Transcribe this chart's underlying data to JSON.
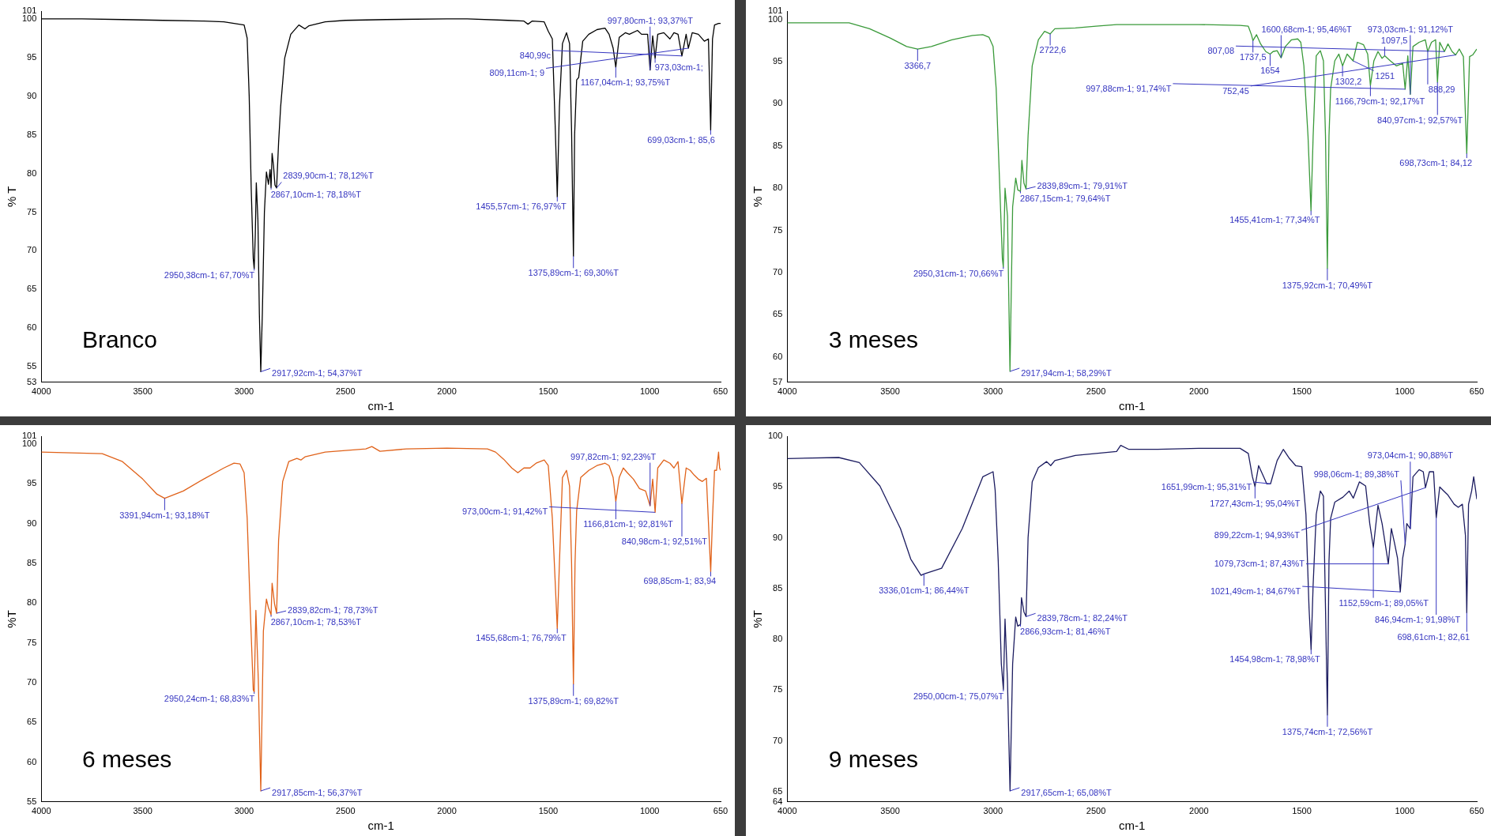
{
  "chart_data": [
    {
      "type": "line",
      "title": "Branco",
      "xlabel": "cm-1",
      "ylabel": "% T",
      "color": "#000000",
      "xlim": [
        4000,
        650
      ],
      "xticks": [
        4000,
        3500,
        3000,
        2500,
        2000,
        1500,
        1000,
        650
      ],
      "ylim": [
        53,
        101
      ],
      "yticks": [
        53,
        55,
        60,
        65,
        70,
        75,
        80,
        85,
        90,
        95,
        100,
        101
      ],
      "x": [
        4000,
        3800,
        3600,
        3400,
        3200,
        3100,
        3050,
        3000,
        2985,
        2975,
        2965,
        2955,
        2950.38,
        2945,
        2940,
        2932,
        2925,
        2917.92,
        2910,
        2900,
        2890,
        2880,
        2872,
        2867.1,
        2862,
        2855,
        2848,
        2839.9,
        2830,
        2820,
        2800,
        2770,
        2730,
        2700,
        2680,
        2600,
        2500,
        2300,
        2000,
        1900,
        1700,
        1620,
        1600,
        1580,
        1520,
        1500,
        1480,
        1465,
        1455.57,
        1445,
        1430,
        1410,
        1395,
        1385,
        1375.89,
        1370,
        1360,
        1350,
        1330,
        1300,
        1260,
        1220,
        1200,
        1180,
        1167.04,
        1150,
        1120,
        1100,
        1060,
        1040,
        1010,
        997.8,
        985,
        973.03,
        960,
        930,
        900,
        880,
        860,
        840.99,
        820,
        809.11,
        790,
        760,
        730,
        710,
        699.03,
        690,
        680,
        660,
        650
      ],
      "values": [
        100,
        100,
        99.9,
        99.8,
        99.7,
        99.6,
        99.4,
        99.2,
        97.5,
        90,
        78,
        69,
        67.7,
        72,
        78.8,
        74,
        62,
        54.37,
        62,
        75,
        80.2,
        78.6,
        80.5,
        78.18,
        82.6,
        81,
        78.5,
        78.12,
        84,
        88.6,
        94.9,
        98,
        99.2,
        98.7,
        99.1,
        99.6,
        99.8,
        99.9,
        100,
        100,
        99.8,
        99.7,
        99.3,
        99.7,
        99.6,
        98.4,
        97.4,
        85.5,
        76.97,
        88.6,
        96.8,
        98.2,
        96.8,
        85.5,
        69.3,
        85,
        92.1,
        92.4,
        97.1,
        98,
        98.6,
        98.8,
        98,
        96.2,
        93.75,
        97.6,
        98.2,
        98,
        98.5,
        98,
        98,
        93.37,
        97.8,
        94.9,
        98,
        98.2,
        97.4,
        98.2,
        98,
        95.2,
        98,
        96.2,
        98.2,
        98,
        97.1,
        97.4,
        85.6,
        97.4,
        99.2,
        99.4,
        99.4
      ],
      "annotations": [
        {
          "text": "2917,92cm-1; 54,37%T",
          "x": 2917.92,
          "y": 54.37
        },
        {
          "text": "2950,38cm-1; 67,70%T",
          "x": 2950.38,
          "y": 67.7
        },
        {
          "text": "2867,10cm-1; 78,18%T",
          "x": 2867.1,
          "y": 78.18
        },
        {
          "text": "2839,90cm-1; 78,12%T",
          "x": 2839.9,
          "y": 78.12
        },
        {
          "text": "1455,57cm-1; 76,97%T",
          "x": 1455.57,
          "y": 76.97
        },
        {
          "text": "1375,89cm-1; 69,30%T",
          "x": 1375.89,
          "y": 69.3
        },
        {
          "text": "1167,04cm-1; 93,75%T",
          "x": 1167.04,
          "y": 93.75
        },
        {
          "text": "997,80cm-1; 93,37%T",
          "x": 997.8,
          "y": 93.37
        },
        {
          "text": "973,03cm-1;",
          "x": 973.03,
          "y": 94.9
        },
        {
          "text": "840,99c",
          "x": 840.99,
          "y": 95.2
        },
        {
          "text": "809,11cm-1; 9",
          "x": 809.11,
          "y": 96.2
        },
        {
          "text": "699,03cm-1; 85,6",
          "x": 699.03,
          "y": 85.6
        }
      ]
    },
    {
      "type": "line",
      "title": "3 meses",
      "xlabel": "cm-1",
      "ylabel": "% T",
      "color": "#3a9a3a",
      "xlim": [
        4000,
        650
      ],
      "xticks": [
        4000,
        3500,
        3000,
        2500,
        2000,
        1500,
        1000,
        650
      ],
      "ylim": [
        57,
        101
      ],
      "yticks": [
        57,
        60,
        65,
        70,
        75,
        80,
        85,
        90,
        95,
        100,
        101
      ],
      "x": [
        4000,
        3800,
        3700,
        3600,
        3500,
        3420,
        3366.7,
        3300,
        3200,
        3100,
        3050,
        3020,
        3000,
        2985,
        2970,
        2955,
        2950.31,
        2942,
        2930,
        2917.94,
        2905,
        2890,
        2880,
        2867.15,
        2860,
        2850,
        2839.89,
        2830,
        2810,
        2780,
        2750,
        2722.6,
        2700,
        2600,
        2500,
        2400,
        2200,
        2000,
        1800,
        1760,
        1745,
        1737.5,
        1720,
        1700,
        1675,
        1654,
        1640,
        1620,
        1600.68,
        1580,
        1550,
        1520,
        1505,
        1490,
        1470,
        1455.41,
        1445,
        1430,
        1410,
        1395,
        1385,
        1375.92,
        1368,
        1360,
        1340,
        1320,
        1302.2,
        1280,
        1251,
        1230,
        1200,
        1180,
        1166.79,
        1150,
        1130,
        1110,
        1097.5,
        1070,
        1040,
        1010,
        997.88,
        985,
        973.03,
        960,
        930,
        900,
        888.29,
        870,
        850,
        840.97,
        830,
        807.08,
        790,
        770,
        752.45,
        735,
        715,
        698.73,
        685,
        670,
        650
      ],
      "values": [
        99.6,
        99.6,
        99.6,
        98.9,
        97.8,
        96.8,
        96.5,
        96.8,
        97.6,
        98.1,
        98.2,
        97.9,
        96.8,
        91.8,
        81.8,
        71.7,
        70.66,
        80,
        76.7,
        58.29,
        77.8,
        81.2,
        79.8,
        79.64,
        83.3,
        80.6,
        79.91,
        86.2,
        94.5,
        97.6,
        98.6,
        98.3,
        98.9,
        99,
        99.2,
        99.4,
        99.4,
        99.4,
        99.3,
        99.2,
        98.2,
        97.5,
        98.2,
        97.1,
        96.2,
        95.9,
        96.2,
        96.3,
        95.46,
        96.8,
        97.6,
        97.7,
        97.3,
        94.5,
        86.2,
        77.34,
        86.2,
        95.7,
        96.3,
        95.1,
        86.2,
        70.49,
        86.2,
        91.8,
        95.1,
        95.9,
        94.5,
        95.9,
        95.1,
        97.3,
        97,
        95.9,
        92.17,
        95.1,
        96.2,
        95.4,
        95.7,
        95.1,
        94.5,
        94.8,
        91.74,
        95.7,
        91.12,
        96.8,
        97.3,
        97.6,
        96.2,
        97.3,
        97.6,
        92.57,
        97.3,
        96.2,
        97.1,
        96.2,
        95.8,
        96.5,
        95.6,
        84.12,
        95.6,
        95.8,
        96.5
      ],
      "annotations": [
        {
          "text": "2917,94cm-1; 58,29%T",
          "x": 2917.94,
          "y": 58.29
        },
        {
          "text": "2950,31cm-1; 70,66%T",
          "x": 2950.31,
          "y": 70.66
        },
        {
          "text": "2867,15cm-1; 79,64%T",
          "x": 2867.15,
          "y": 79.64
        },
        {
          "text": "2839,89cm-1; 79,91%T",
          "x": 2839.89,
          "y": 79.91
        },
        {
          "text": "1455,41cm-1; 77,34%T",
          "x": 1455.41,
          "y": 77.34
        },
        {
          "text": "1375,92cm-1; 70,49%T",
          "x": 1375.92,
          "y": 70.49
        },
        {
          "text": "3366,7",
          "x": 3366.7,
          "y": 96.5
        },
        {
          "text": "2722,6",
          "x": 2722.6,
          "y": 98.3
        },
        {
          "text": "1737,5",
          "x": 1737.5,
          "y": 97.5
        },
        {
          "text": "1654",
          "x": 1654,
          "y": 95.9
        },
        {
          "text": "1600,68cm-1; 95,46%T",
          "x": 1600.68,
          "y": 95.46
        },
        {
          "text": "1302,2",
          "x": 1302.2,
          "y": 94.5
        },
        {
          "text": "1251",
          "x": 1251,
          "y": 95.1
        },
        {
          "text": "1166,79cm-1; 92,17%T",
          "x": 1166.79,
          "y": 92.17
        },
        {
          "text": "1097,5",
          "x": 1097.5,
          "y": 95.7
        },
        {
          "text": "997,88cm-1; 91,74%T",
          "x": 997.88,
          "y": 91.74
        },
        {
          "text": "973,03cm-1; 91,12%T",
          "x": 973.03,
          "y": 91.12
        },
        {
          "text": "888,29",
          "x": 888.29,
          "y": 96.2
        },
        {
          "text": "840,97cm-1; 92,57%T",
          "x": 840.97,
          "y": 92.57
        },
        {
          "text": "807,08",
          "x": 807.08,
          "y": 96.2
        },
        {
          "text": "752,45",
          "x": 752.45,
          "y": 95.8
        },
        {
          "text": "698,73cm-1; 84,12",
          "x": 698.73,
          "y": 84.12
        }
      ]
    },
    {
      "type": "line",
      "title": "6 meses",
      "xlabel": "cm-1",
      "ylabel": "%T",
      "color": "#e0621a",
      "xlim": [
        4000,
        650
      ],
      "xticks": [
        4000,
        3500,
        3000,
        2500,
        2000,
        1500,
        1000,
        650
      ],
      "ylim": [
        55,
        101
      ],
      "yticks": [
        55,
        60,
        65,
        70,
        75,
        80,
        85,
        90,
        95,
        100,
        101
      ],
      "x": [
        4000,
        3700,
        3600,
        3500,
        3430,
        3391.94,
        3300,
        3200,
        3100,
        3050,
        3020,
        3000,
        2985,
        2970,
        2955,
        2950.24,
        2942,
        2930,
        2917.85,
        2905,
        2890,
        2880,
        2867.1,
        2862,
        2850,
        2839.82,
        2830,
        2810,
        2780,
        2740,
        2720,
        2700,
        2600,
        2400,
        2370,
        2330,
        2200,
        2000,
        1800,
        1760,
        1720,
        1680,
        1650,
        1620,
        1590,
        1560,
        1520,
        1500,
        1480,
        1465,
        1455.68,
        1445,
        1430,
        1410,
        1395,
        1385,
        1375.89,
        1368,
        1360,
        1340,
        1300,
        1260,
        1220,
        1200,
        1180,
        1166.81,
        1150,
        1130,
        1110,
        1080,
        1050,
        1020,
        997.82,
        985,
        973,
        960,
        930,
        900,
        880,
        860,
        840.98,
        820,
        800,
        780,
        760,
        740,
        720,
        698.85,
        690,
        680,
        670,
        660,
        655,
        650
      ],
      "values": [
        99,
        98.8,
        97.8,
        95.6,
        93.7,
        93.18,
        94.1,
        95.6,
        97,
        97.6,
        97.5,
        96.4,
        90.7,
        79.4,
        69.1,
        68.83,
        79.1,
        70.3,
        56.37,
        76.5,
        80.5,
        79.4,
        78.53,
        82.5,
        79.9,
        78.73,
        87.9,
        95.3,
        97.8,
        98.2,
        98,
        98.4,
        99,
        99.4,
        99.7,
        99.1,
        99.4,
        99.5,
        99.4,
        99,
        98.1,
        97,
        96.4,
        97,
        97,
        97.6,
        98,
        97.3,
        90.7,
        82.2,
        76.79,
        85,
        95.8,
        96.7,
        94.7,
        85,
        69.82,
        85,
        91.6,
        95.8,
        96.7,
        97.3,
        97.6,
        97.3,
        95.8,
        92.81,
        95.8,
        97,
        96.4,
        95.6,
        94.4,
        94.1,
        92.23,
        95.6,
        91.42,
        97,
        98,
        97.6,
        97,
        97.8,
        92.51,
        97,
        96.7,
        96.1,
        95.6,
        95.3,
        95.7,
        83.94,
        90.7,
        96.7,
        96.7,
        99,
        97,
        96.7
      ],
      "annotations": [
        {
          "text": "2917,85cm-1; 56,37%T",
          "x": 2917.85,
          "y": 56.37
        },
        {
          "text": "2950,24cm-1; 68,83%T",
          "x": 2950.24,
          "y": 68.83
        },
        {
          "text": "2867,10cm-1; 78,53%T",
          "x": 2867.1,
          "y": 78.53
        },
        {
          "text": "2839,82cm-1; 78,73%T",
          "x": 2839.82,
          "y": 78.73
        },
        {
          "text": "3391,94cm-1; 93,18%T",
          "x": 3391.94,
          "y": 93.18
        },
        {
          "text": "1455,68cm-1; 76,79%T",
          "x": 1455.68,
          "y": 76.79
        },
        {
          "text": "1375,89cm-1; 69,82%T",
          "x": 1375.89,
          "y": 69.82
        },
        {
          "text": "1166,81cm-1; 92,81%T",
          "x": 1166.81,
          "y": 92.81
        },
        {
          "text": "997,82cm-1; 92,23%T",
          "x": 997.82,
          "y": 92.23
        },
        {
          "text": "973,00cm-1; 91,42%T",
          "x": 973,
          "y": 91.42
        },
        {
          "text": "840,98cm-1; 92,51%T",
          "x": 840.98,
          "y": 92.51
        },
        {
          "text": "698,85cm-1; 83,94",
          "x": 698.85,
          "y": 83.94
        }
      ]
    },
    {
      "type": "line",
      "title": "9 meses",
      "xlabel": "cm-1",
      "ylabel": "%T",
      "color": "#1c1c60",
      "xlim": [
        4000,
        650
      ],
      "xticks": [
        4000,
        3500,
        3000,
        2500,
        2000,
        1500,
        1000,
        650
      ],
      "ylim": [
        64,
        100
      ],
      "yticks": [
        64,
        65,
        70,
        75,
        80,
        85,
        90,
        95,
        100
      ],
      "x": [
        4000,
        3750,
        3650,
        3550,
        3450,
        3400,
        3350,
        3336.01,
        3250,
        3150,
        3050,
        3000,
        2990,
        2975,
        2960,
        2950,
        2942,
        2930,
        2917.65,
        2905,
        2890,
        2880,
        2866.93,
        2862,
        2850,
        2839.78,
        2830,
        2810,
        2780,
        2740,
        2720,
        2700,
        2600,
        2400,
        2380,
        2340,
        2200,
        2000,
        1800,
        1760,
        1740,
        1727.43,
        1710,
        1690,
        1670,
        1651.99,
        1620,
        1590,
        1560,
        1530,
        1500,
        1480,
        1465,
        1454.98,
        1445,
        1430,
        1410,
        1395,
        1385,
        1375.74,
        1368,
        1360,
        1340,
        1300,
        1270,
        1250,
        1220,
        1190,
        1170,
        1152.59,
        1130,
        1110,
        1079.73,
        1065,
        1050,
        1035,
        1021.49,
        1010,
        998.06,
        990,
        973.04,
        960,
        930,
        910,
        899.22,
        880,
        860,
        846.94,
        830,
        810,
        790,
        760,
        740,
        720,
        705,
        698.61,
        690,
        675,
        665,
        655,
        650
      ],
      "values": [
        97.8,
        97.9,
        97.4,
        95.1,
        90.9,
        87.9,
        86.3,
        86.44,
        87,
        90.9,
        96,
        96.5,
        94.7,
        87.7,
        77.6,
        75.07,
        82,
        75.8,
        65.08,
        77.6,
        82.2,
        81.3,
        81.46,
        84.1,
        82.7,
        82.24,
        90,
        95.5,
        96.9,
        97.5,
        97.1,
        97.6,
        98.1,
        98.5,
        99.1,
        98.7,
        98.7,
        98.8,
        98.8,
        98.3,
        96,
        95.04,
        97.1,
        96.2,
        95.3,
        95.31,
        97.6,
        98.7,
        97.8,
        97.1,
        97,
        92.3,
        83.1,
        78.98,
        85.4,
        92.3,
        94.6,
        94.1,
        83.1,
        72.56,
        87.7,
        91.9,
        93.5,
        94,
        94.6,
        93.9,
        95.5,
        95.1,
        91.4,
        89.05,
        93.2,
        91.4,
        87.43,
        90.9,
        89.5,
        88,
        84.67,
        88,
        89.38,
        91.4,
        90.88,
        96,
        96.7,
        96.5,
        94.93,
        96.5,
        96.5,
        91.98,
        95,
        94.6,
        94.2,
        93.3,
        93,
        93.3,
        90.2,
        82.61,
        93.3,
        94.6,
        96,
        94.6,
        93.8
      ],
      "annotations": [
        {
          "text": "2917,65cm-1; 65,08%T",
          "x": 2917.65,
          "y": 65.08
        },
        {
          "text": "2950,00cm-1; 75,07%T",
          "x": 2950,
          "y": 75.07
        },
        {
          "text": "2866,93cm-1; 81,46%T",
          "x": 2866.93,
          "y": 81.46
        },
        {
          "text": "2839,78cm-1; 82,24%T",
          "x": 2839.78,
          "y": 82.24
        },
        {
          "text": "3336,01cm-1; 86,44%T",
          "x": 3336.01,
          "y": 86.44
        },
        {
          "text": "1727,43cm-1; 95,04%T",
          "x": 1727.43,
          "y": 95.04
        },
        {
          "text": "1651,99cm-1; 95,31%T",
          "x": 1651.99,
          "y": 95.31
        },
        {
          "text": "1454,98cm-1; 78,98%T",
          "x": 1454.98,
          "y": 78.98
        },
        {
          "text": "1375,74cm-1; 72,56%T",
          "x": 1375.74,
          "y": 72.56
        },
        {
          "text": "1152,59cm-1; 89,05%T",
          "x": 1152.59,
          "y": 89.05
        },
        {
          "text": "1079,73cm-1; 87,43%T",
          "x": 1079.73,
          "y": 87.43
        },
        {
          "text": "1021,49cm-1; 84,67%T",
          "x": 1021.49,
          "y": 84.67
        },
        {
          "text": "998,06cm-1; 89,38%T",
          "x": 998.06,
          "y": 89.38
        },
        {
          "text": "973,04cm-1; 90,88%T",
          "x": 973.04,
          "y": 90.88
        },
        {
          "text": "899,22cm-1; 94,93%T",
          "x": 899.22,
          "y": 94.93
        },
        {
          "text": "846,94cm-1; 91,98%T",
          "x": 846.94,
          "y": 91.98
        },
        {
          "text": "698,61cm-1; 82,61",
          "x": 698.61,
          "y": 82.61
        }
      ]
    }
  ]
}
